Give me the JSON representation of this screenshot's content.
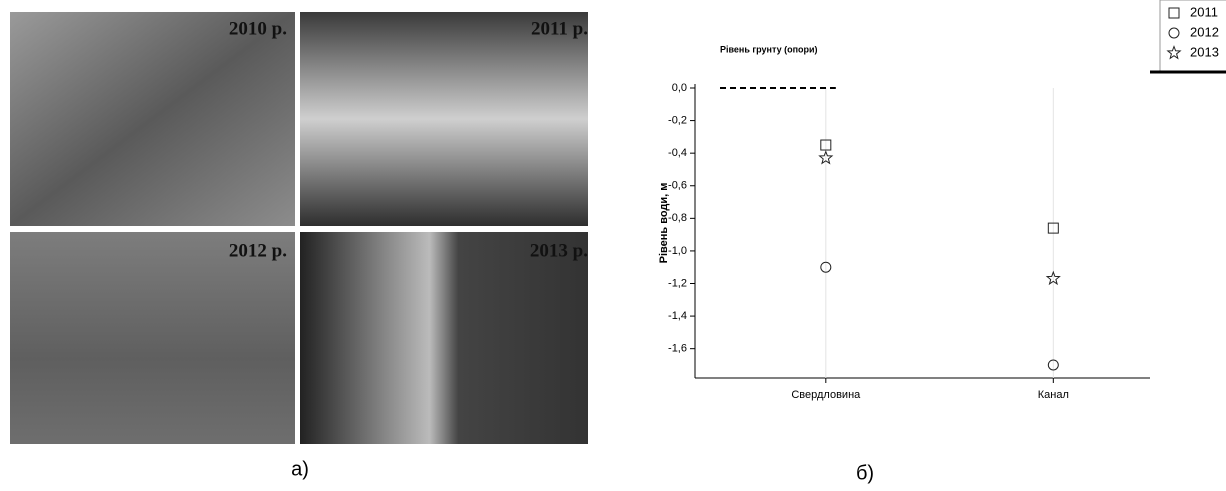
{
  "photos": [
    {
      "label": "2010 р."
    },
    {
      "label": "2011 р."
    },
    {
      "label": "2012 р."
    },
    {
      "label": "2013 р."
    }
  ],
  "captions": [
    "а)",
    "б)"
  ],
  "chart_data": {
    "type": "scatter",
    "annotation": "Рівень грунту (опори)",
    "y_label": "Рівень води, м",
    "categories": [
      "Свердловина",
      "Канал"
    ],
    "series": [
      {
        "name": "2011",
        "marker": "square",
        "color": "#222222",
        "values": [
          -0.35,
          -0.86
        ]
      },
      {
        "name": "2012",
        "marker": "circle",
        "color": "#222222",
        "values": [
          -1.1,
          -1.7
        ]
      },
      {
        "name": "2013",
        "marker": "star",
        "color": "#222222",
        "values": [
          -0.43,
          -1.17
        ]
      }
    ],
    "ylim": [
      -1.78,
      0.0
    ],
    "yticks": [
      {
        "value": 0,
        "label": "0,0"
      },
      {
        "value": -0.2,
        "label": "-0,2"
      },
      {
        "value": -0.4,
        "label": "-0,4"
      },
      {
        "value": -0.6,
        "label": "-0,6"
      },
      {
        "value": -0.8,
        "label": "-0,8"
      },
      {
        "value": -1.0,
        "label": "-1,0"
      },
      {
        "value": -1.2,
        "label": "-1,2"
      },
      {
        "value": -1.4,
        "label": "-1,4"
      },
      {
        "value": -1.6,
        "label": "-1,6"
      }
    ],
    "grid": true,
    "legend_position": "upper right"
  }
}
